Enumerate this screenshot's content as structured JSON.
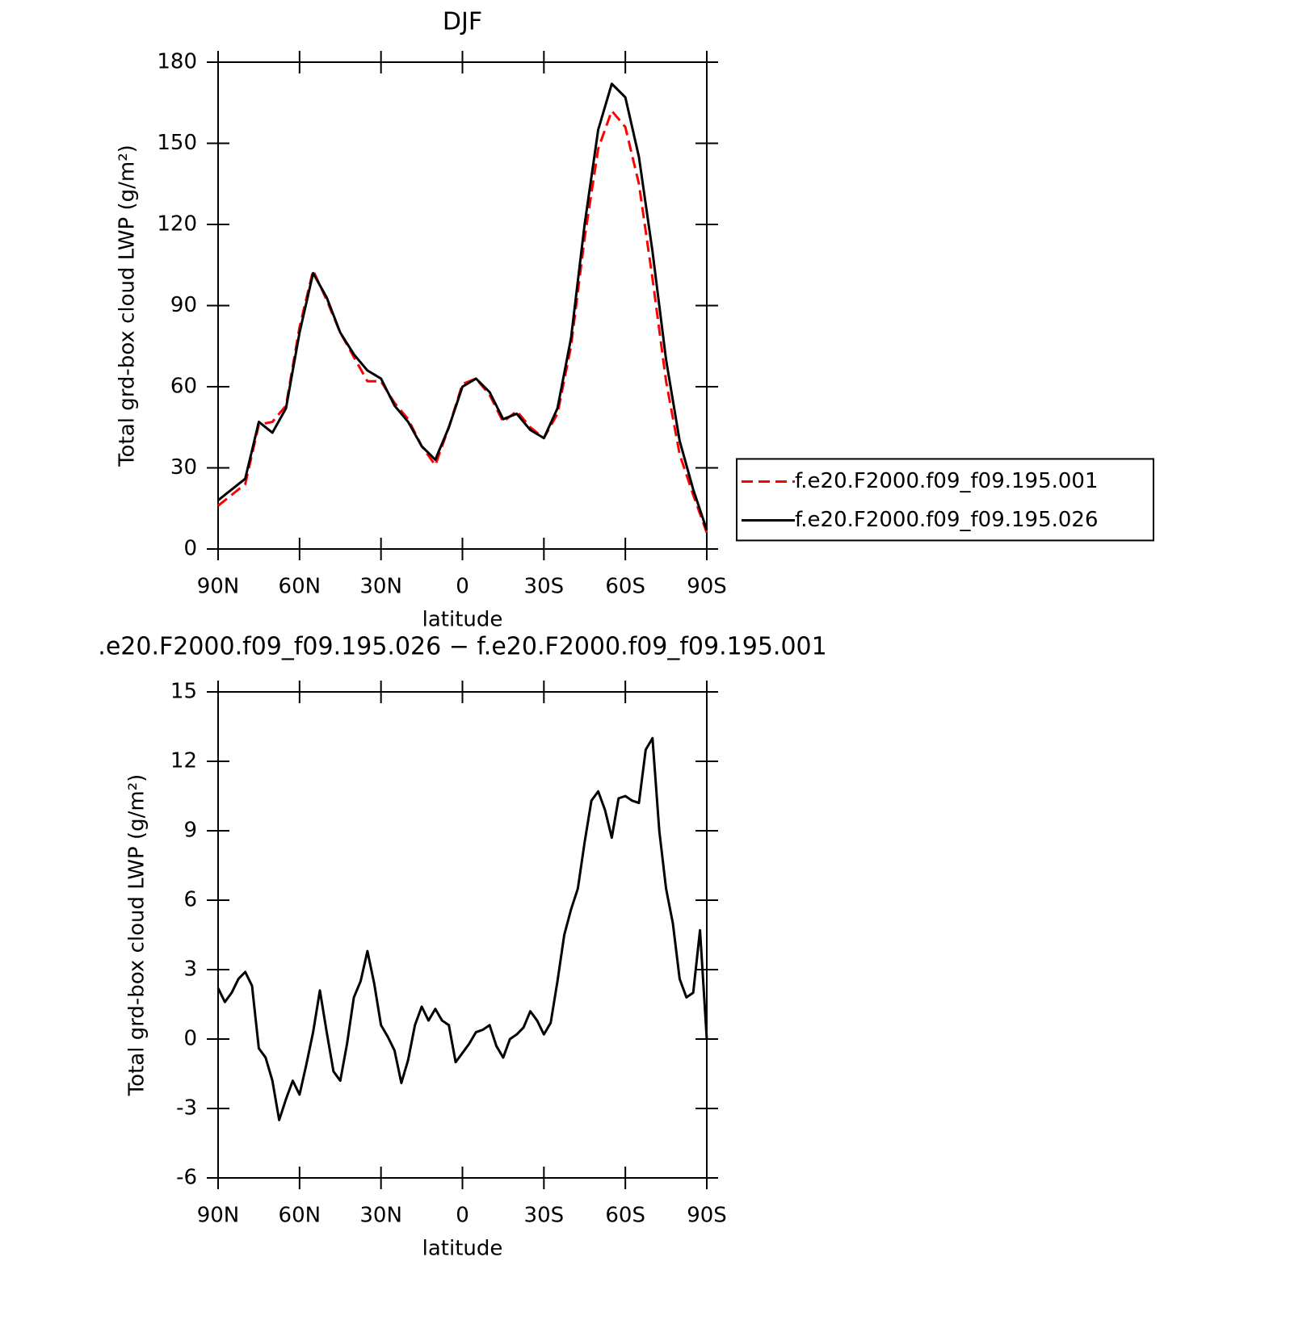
{
  "chart_data": [
    {
      "type": "line",
      "title": "DJF",
      "xlabel": "latitude",
      "ylabel": "Total grd-box cloud LWP (g/m²)",
      "x": [
        90,
        85,
        80,
        75,
        70,
        65,
        60,
        55,
        50,
        45,
        40,
        35,
        30,
        25,
        20,
        15,
        10,
        5,
        0,
        -5,
        -10,
        -15,
        -20,
        -25,
        -30,
        -35,
        -40,
        -45,
        -50,
        -55,
        -60,
        -65,
        -70,
        -75,
        -80,
        -85,
        -90
      ],
      "series": [
        {
          "name": "f.e20.F2000.f09_f09.195.001",
          "color": "#ff0000",
          "style": "dashed",
          "values": [
            16,
            20,
            24,
            46,
            47,
            53,
            82,
            103,
            92,
            80,
            71,
            62,
            62,
            54,
            48,
            38,
            31,
            45,
            61,
            63,
            57,
            47,
            51,
            45,
            41,
            50,
            75,
            115,
            148,
            162,
            156,
            135,
            100,
            62,
            35,
            20,
            6
          ]
        },
        {
          "name": "f.e20.F2000.f09_f09.195.026",
          "color": "#000000",
          "style": "solid",
          "values": [
            18,
            22,
            26,
            47,
            43,
            52,
            80,
            102,
            93,
            80,
            72,
            66,
            63,
            53,
            47,
            38,
            33,
            45,
            60,
            63,
            58,
            48,
            50,
            44,
            41,
            52,
            78,
            120,
            155,
            172,
            167,
            145,
            110,
            70,
            40,
            22,
            7
          ]
        }
      ],
      "xlim": [
        90,
        -90
      ],
      "xticks": [
        {
          "value": 90,
          "label": "90N"
        },
        {
          "value": 60,
          "label": "60N"
        },
        {
          "value": 30,
          "label": "30N"
        },
        0,
        {
          "value": -30,
          "label": "30S"
        },
        {
          "value": -60,
          "label": "60S"
        },
        {
          "value": -90,
          "label": "90S"
        }
      ],
      "ylim": [
        0,
        180
      ],
      "yticks": [
        0,
        30,
        60,
        90,
        120,
        150,
        180
      ],
      "legend": "outside-right"
    },
    {
      "type": "line",
      "title": ".e20.F2000.f09_f09.195.026 − f.e20.F2000.f09_f09.195.001",
      "xlabel": "latitude",
      "ylabel": "Total grd-box cloud LWP (g/m²)",
      "x": [
        90,
        87.5,
        85,
        82.5,
        80,
        77.5,
        75,
        72.5,
        70,
        67.5,
        65,
        62.5,
        60,
        57.5,
        55,
        52.5,
        50,
        47.5,
        45,
        42.5,
        40,
        37.5,
        35,
        32.5,
        30,
        27.5,
        25,
        22.5,
        20,
        17.5,
        15,
        12.5,
        10,
        7.5,
        5,
        2.5,
        0,
        -2.5,
        -5,
        -7.5,
        -10,
        -12.5,
        -15,
        -17.5,
        -20,
        -22.5,
        -25,
        -27.5,
        -30,
        -32.5,
        -35,
        -37.5,
        -40,
        -42.5,
        -45,
        -47.5,
        -50,
        -52.5,
        -55,
        -57.5,
        -60,
        -62.5,
        -65,
        -67.5,
        -70,
        -72.5,
        -75,
        -77.5,
        -80,
        -82.5,
        -85,
        -87.5,
        -90
      ],
      "series": [
        {
          "color": "#000000",
          "style": "solid",
          "values": [
            2.2,
            1.6,
            2.0,
            2.6,
            2.9,
            2.3,
            -0.4,
            -0.8,
            -1.8,
            -3.5,
            -2.6,
            -1.8,
            -2.4,
            -1.1,
            0.3,
            2.1,
            0.3,
            -1.4,
            -1.8,
            -0.2,
            1.8,
            2.5,
            3.8,
            2.4,
            0.6,
            0.1,
            -0.5,
            -1.9,
            -0.9,
            0.6,
            1.4,
            0.8,
            1.3,
            0.8,
            0.6,
            -1.0,
            -0.6,
            -0.2,
            0.3,
            0.4,
            0.6,
            -0.3,
            -0.8,
            0.0,
            0.2,
            0.5,
            1.2,
            0.8,
            0.2,
            0.7,
            2.5,
            4.5,
            5.6,
            6.5,
            8.5,
            10.3,
            10.7,
            9.9,
            8.7,
            10.4,
            10.5,
            10.3,
            10.2,
            12.5,
            13.0,
            9.0,
            6.5,
            5.0,
            2.6,
            1.8,
            2.0,
            4.7,
            0.0
          ]
        }
      ],
      "xlim": [
        90,
        -90
      ],
      "xticks": [
        {
          "value": 90,
          "label": "90N"
        },
        {
          "value": 60,
          "label": "60N"
        },
        {
          "value": 30,
          "label": "30N"
        },
        0,
        {
          "value": -30,
          "label": "30S"
        },
        {
          "value": -60,
          "label": "60S"
        },
        {
          "value": -90,
          "label": "90S"
        }
      ],
      "ylim": [
        -6,
        15
      ],
      "yticks": [
        -6,
        -3,
        0,
        3,
        6,
        9,
        12,
        15
      ]
    }
  ]
}
